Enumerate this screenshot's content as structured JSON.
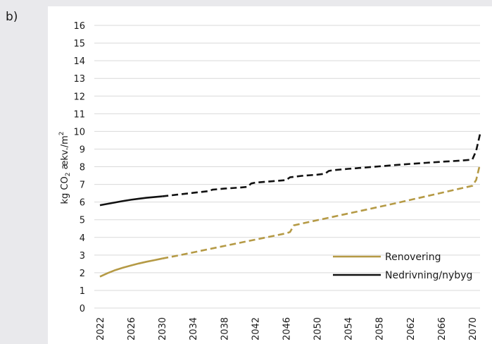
{
  "panel_label": "b)",
  "chart_data": {
    "type": "line",
    "ylabel": {
      "pre": "kg CO",
      "sub": "2",
      "mid": " ækv./m",
      "sup": "2"
    },
    "ylim": [
      0,
      16
    ],
    "yticks": [
      "0",
      "1",
      "2",
      "3",
      "4",
      "5",
      "6",
      "7",
      "8",
      "9",
      "10",
      "11",
      "12",
      "13",
      "14",
      "15",
      "16"
    ],
    "xlim": [
      2022,
      2071
    ],
    "xticks": [
      "2022",
      "2026",
      "2030",
      "2034",
      "2038",
      "2042",
      "2046",
      "2050",
      "2054",
      "2058",
      "2062",
      "2066",
      "2070"
    ],
    "grid": "horizontal",
    "legend_position": "bottom-right",
    "series": [
      {
        "name": "Renovering",
        "color": "#b59a45",
        "solid_until": 2030,
        "points": [
          [
            2022,
            1.78
          ],
          [
            2023,
            1.98
          ],
          [
            2024,
            2.15
          ],
          [
            2025,
            2.29
          ],
          [
            2026,
            2.41
          ],
          [
            2027,
            2.52
          ],
          [
            2028,
            2.62
          ],
          [
            2029,
            2.71
          ],
          [
            2030,
            2.8
          ],
          [
            2032,
            2.97
          ],
          [
            2034,
            3.15
          ],
          [
            2036,
            3.33
          ],
          [
            2038,
            3.51
          ],
          [
            2040,
            3.69
          ],
          [
            2042,
            3.87
          ],
          [
            2044,
            4.05
          ],
          [
            2046,
            4.23
          ],
          [
            2046.5,
            4.3
          ],
          [
            2047,
            4.68
          ],
          [
            2048,
            4.78
          ],
          [
            2050,
            4.97
          ],
          [
            2052,
            5.16
          ],
          [
            2054,
            5.35
          ],
          [
            2056,
            5.54
          ],
          [
            2058,
            5.73
          ],
          [
            2060,
            5.92
          ],
          [
            2062,
            6.12
          ],
          [
            2064,
            6.32
          ],
          [
            2066,
            6.52
          ],
          [
            2068,
            6.72
          ],
          [
            2070,
            6.92
          ],
          [
            2070.5,
            7.25
          ],
          [
            2071,
            8.15
          ]
        ]
      },
      {
        "name": "Nedrivning/nybyg",
        "color": "#111111",
        "solid_until": 2030,
        "points": [
          [
            2022,
            5.82
          ],
          [
            2023,
            5.9
          ],
          [
            2024,
            5.98
          ],
          [
            2025,
            6.06
          ],
          [
            2026,
            6.13
          ],
          [
            2027,
            6.19
          ],
          [
            2028,
            6.24
          ],
          [
            2029,
            6.28
          ],
          [
            2030,
            6.32
          ],
          [
            2032,
            6.42
          ],
          [
            2034,
            6.52
          ],
          [
            2036,
            6.62
          ],
          [
            2036.5,
            6.7
          ],
          [
            2038,
            6.76
          ],
          [
            2040,
            6.82
          ],
          [
            2041,
            6.86
          ],
          [
            2041.5,
            7.05
          ],
          [
            2042,
            7.1
          ],
          [
            2044,
            7.17
          ],
          [
            2046,
            7.24
          ],
          [
            2046.5,
            7.4
          ],
          [
            2048,
            7.48
          ],
          [
            2050,
            7.55
          ],
          [
            2051,
            7.6
          ],
          [
            2051.5,
            7.76
          ],
          [
            2052,
            7.8
          ],
          [
            2054,
            7.88
          ],
          [
            2056,
            7.95
          ],
          [
            2058,
            8.02
          ],
          [
            2060,
            8.09
          ],
          [
            2062,
            8.16
          ],
          [
            2064,
            8.22
          ],
          [
            2066,
            8.28
          ],
          [
            2068,
            8.33
          ],
          [
            2070,
            8.4
          ],
          [
            2070.5,
            8.9
          ],
          [
            2071,
            9.85
          ]
        ]
      }
    ]
  }
}
